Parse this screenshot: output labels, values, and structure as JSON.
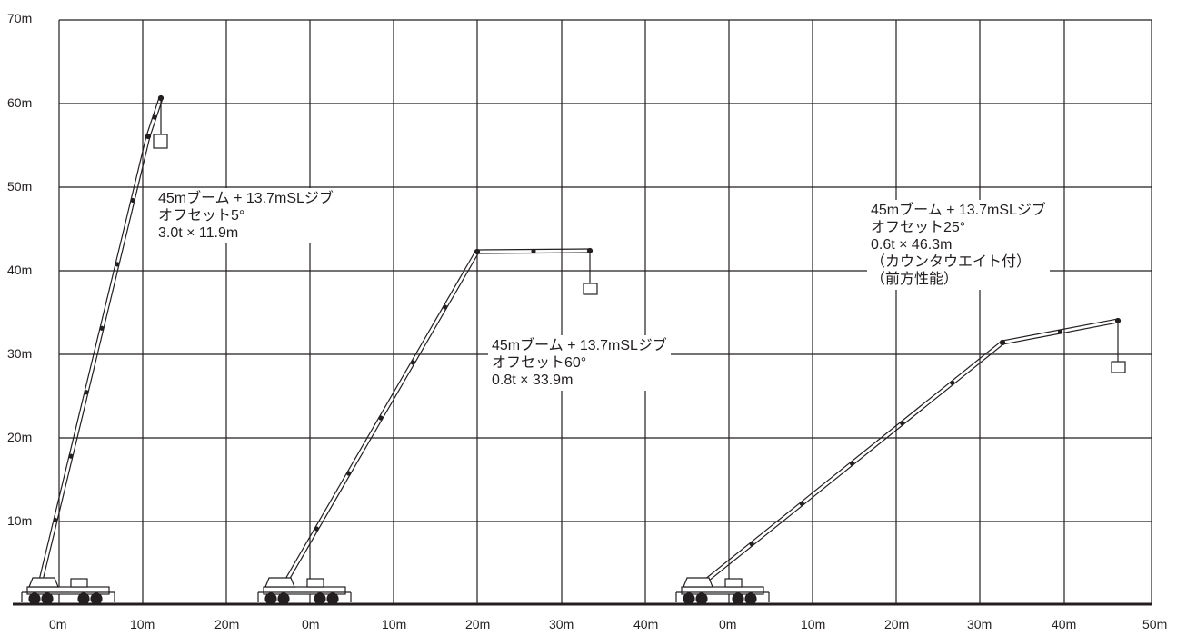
{
  "y_axis": {
    "labels": [
      "70m",
      "60m",
      "50m",
      "40m",
      "30m",
      "20m",
      "10m"
    ]
  },
  "x_axis": {
    "labels": [
      "0m",
      "10m",
      "20m",
      "0m",
      "10m",
      "20m",
      "30m",
      "40m",
      "0m",
      "10m",
      "20m",
      "30m",
      "40m",
      "50m"
    ]
  },
  "configurations": [
    {
      "lines": [
        "45mブーム + 13.7mSLジブ",
        "オフセット5°",
        "3.0t × 11.9m"
      ]
    },
    {
      "lines": [
        "45mブーム + 13.7mSLジブ",
        "オフセット60°",
        "0.8t × 33.9m"
      ]
    },
    {
      "lines": [
        "45mブーム + 13.7mSLジブ",
        "オフセット25°",
        "0.6t × 46.3m",
        "（カウンタウエイト付）",
        "（前方性能）"
      ]
    }
  ],
  "colors": {
    "line": "#231f20",
    "background": "#ffffff"
  }
}
